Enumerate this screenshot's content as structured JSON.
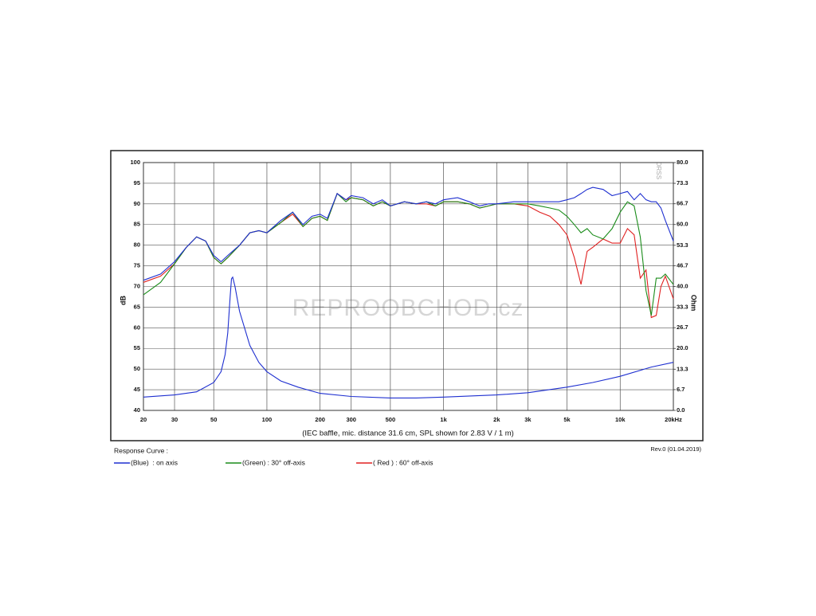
{
  "chart_data": {
    "type": "line",
    "xscale": "log",
    "caption": "(IEC baffle, mic. distance 31.6 cm, SPL shown for 2.83 V / 1 m)",
    "ylabel": "dB",
    "y2label": "Ohm",
    "legend_title": "Response Curve :",
    "revision": "Rev.0 (01.04.2019)",
    "watermark": "REPROOBCHOD.cz",
    "stamp": "DRSS",
    "grid": true,
    "xlim": [
      20,
      20000
    ],
    "xticks": [
      20,
      30,
      50,
      100,
      200,
      300,
      500,
      {
        "value": 1000,
        "label": "1k"
      },
      {
        "value": 2000,
        "label": "2k"
      },
      {
        "value": 3000,
        "label": "3k"
      },
      {
        "value": 5000,
        "label": "5k"
      },
      {
        "value": 10000,
        "label": "10k"
      },
      {
        "value": 20000,
        "label": "20kHz"
      }
    ],
    "ylim": [
      40,
      100
    ],
    "yticks": [
      40,
      45,
      50,
      55,
      60,
      65,
      70,
      75,
      80,
      85,
      90,
      95,
      100
    ],
    "y2lim": [
      0,
      80
    ],
    "y2ticks": [
      {
        "value": 0,
        "label": "0.0"
      },
      6.7,
      13.3,
      {
        "value": 20,
        "label": "20.0"
      },
      26.7,
      33.3,
      {
        "value": 40,
        "label": "40.0"
      },
      46.7,
      53.3,
      {
        "value": 60,
        "label": "60.0"
      },
      66.7,
      73.3,
      {
        "value": 80,
        "label": "80.0"
      }
    ],
    "series": [
      {
        "name": "(Blue)  : on axis",
        "color": "#1e2fd0",
        "x": [
          20,
          25,
          30,
          35,
          40,
          45,
          50,
          55,
          60,
          70,
          80,
          90,
          100,
          120,
          140,
          160,
          180,
          200,
          220,
          250,
          280,
          300,
          350,
          400,
          450,
          500,
          600,
          700,
          800,
          900,
          1000,
          1200,
          1400,
          1600,
          1800,
          2000,
          2500,
          3000,
          3500,
          4000,
          4500,
          5000,
          5500,
          6000,
          6500,
          7000,
          8000,
          9000,
          10000,
          11000,
          12000,
          13000,
          14000,
          15000,
          16000,
          17000,
          18000,
          20000
        ],
        "values": [
          71.5,
          73,
          76,
          79.5,
          82,
          81,
          77.5,
          76,
          77.5,
          80,
          83,
          83.5,
          83,
          86,
          88,
          85,
          87,
          87.5,
          86.5,
          92.5,
          91,
          92,
          91.5,
          90,
          91,
          89.5,
          90.5,
          90,
          90.5,
          90,
          91,
          91.5,
          90.5,
          89.5,
          90,
          90,
          90.5,
          90.5,
          90.5,
          90.5,
          90.5,
          91,
          91.5,
          92.5,
          93.5,
          94,
          93.5,
          92,
          92.5,
          93,
          91,
          92.5,
          91,
          90.5,
          90.5,
          89,
          86,
          81
        ]
      },
      {
        "name": "(Green) : 30° off-axis",
        "color": "#1a8c1a",
        "x": [
          20,
          25,
          30,
          35,
          40,
          45,
          50,
          55,
          60,
          70,
          80,
          90,
          100,
          120,
          140,
          160,
          180,
          200,
          220,
          250,
          280,
          300,
          350,
          400,
          450,
          500,
          600,
          700,
          800,
          900,
          1000,
          1200,
          1400,
          1600,
          1800,
          2000,
          2500,
          3000,
          3500,
          4000,
          4500,
          5000,
          5500,
          6000,
          6500,
          7000,
          8000,
          9000,
          10000,
          11000,
          12000,
          13000,
          14000,
          15000,
          16000,
          17000,
          18000,
          20000
        ],
        "values": [
          68,
          71,
          75.5,
          79.5,
          82,
          81,
          77,
          75.5,
          77,
          80,
          83,
          83.5,
          83,
          85.5,
          88,
          84.5,
          86.5,
          87,
          86,
          92.5,
          90.5,
          91.5,
          91,
          89.5,
          90.5,
          89.5,
          90.5,
          90,
          90.5,
          89.5,
          90.5,
          90.5,
          90,
          89,
          89.5,
          90,
          90,
          90,
          89.5,
          89,
          88.5,
          87,
          85,
          83,
          84,
          82.5,
          81.5,
          84,
          88,
          90.5,
          89.5,
          82,
          69,
          63,
          72,
          72,
          73,
          70.5
        ]
      },
      {
        "name": "( Red ) : 60° off-axis",
        "color": "#e02020",
        "x": [
          20,
          25,
          30,
          35,
          40,
          45,
          50,
          55,
          60,
          70,
          80,
          90,
          100,
          120,
          140,
          160,
          180,
          200,
          220,
          250,
          280,
          300,
          350,
          400,
          450,
          500,
          600,
          700,
          800,
          900,
          1000,
          1200,
          1400,
          1600,
          1800,
          2000,
          2500,
          3000,
          3500,
          4000,
          4500,
          5000,
          5500,
          6000,
          6500,
          7000,
          8000,
          9000,
          10000,
          11000,
          12000,
          13000,
          14000,
          15000,
          16000,
          17000,
          18000,
          20000
        ],
        "values": [
          71,
          72.5,
          75.5,
          79.5,
          82,
          81,
          77,
          75.5,
          77,
          80,
          83,
          83.5,
          83,
          85.5,
          87.5,
          84.5,
          86.5,
          87,
          86,
          92.5,
          91,
          91.5,
          91,
          89.5,
          90.5,
          89.5,
          90.5,
          90,
          90,
          89.5,
          90.5,
          90.5,
          90,
          89,
          89.5,
          90,
          90,
          89.5,
          88,
          87,
          85,
          82.5,
          77,
          70.5,
          78.5,
          79.5,
          81.5,
          80.5,
          80.5,
          84,
          82.5,
          72,
          74,
          62.5,
          63,
          70,
          72.5,
          67
        ]
      },
      {
        "color": "#1e2fd0",
        "axis": "y2",
        "x": [
          20,
          30,
          40,
          50,
          55,
          58,
          60,
          62,
          63,
          64,
          66,
          70,
          80,
          90,
          100,
          120,
          150,
          200,
          300,
          500,
          700,
          1000,
          2000,
          3000,
          5000,
          7000,
          10000,
          15000,
          20000
        ],
        "values": [
          4.3,
          5,
          6,
          9,
          12.5,
          18,
          25,
          37,
          42.5,
          43,
          40,
          32,
          21,
          15.5,
          12.5,
          9.5,
          7.5,
          5.5,
          4.5,
          4,
          4,
          4.3,
          5,
          5.7,
          7.5,
          9,
          11,
          14,
          15.5
        ]
      }
    ]
  }
}
